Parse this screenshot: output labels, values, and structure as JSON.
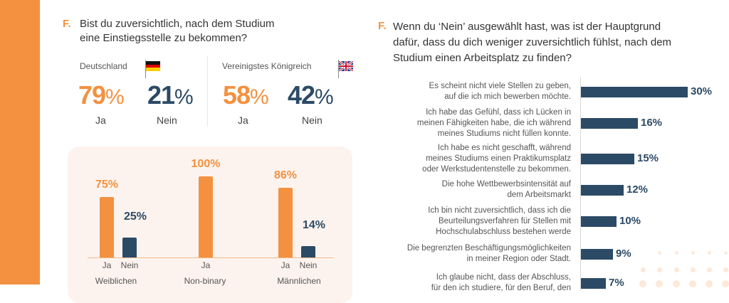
{
  "left": {
    "letter": "F.",
    "question_line1": "Bist du zuversichtlich, nach dem Studium",
    "question_line2": "eine Einstiegsstelle zu bekommen?",
    "countries": [
      {
        "name": "Deutschland",
        "flag": "germany-flag-icon",
        "yes": "79",
        "no": "21",
        "yes_label": "Ja",
        "no_label": "Nein"
      },
      {
        "name": "Vereinigstes Königreich",
        "flag": "uk-flag-icon",
        "yes": "58",
        "no": "42",
        "yes_label": "Ja",
        "no_label": "Nein"
      }
    ],
    "pct_sign": "%"
  },
  "colors": {
    "orange": "#f39140",
    "navy": "#2b4a66",
    "panel": "#fdf3ee"
  },
  "chart_data": [
    {
      "type": "bar",
      "title": "",
      "categories": [
        "Weiblichen",
        "Non-binary",
        "Männlichen"
      ],
      "series": [
        {
          "name": "Ja",
          "values": [
            75,
            100,
            86
          ],
          "labels": [
            "75%",
            "100%",
            "86%"
          ]
        },
        {
          "name": "Nein",
          "values": [
            25,
            null,
            14
          ],
          "labels": [
            "25%",
            null,
            "14%"
          ]
        }
      ],
      "x_sub_labels": [
        "Ja",
        "Nein"
      ],
      "ylim": [
        0,
        100
      ],
      "grid": false
    },
    {
      "type": "bar",
      "orientation": "horizontal",
      "title": "Wenn du ‘Nein’ ausgewählt hast, was ist der Hauptgrund dafür, dass du dich weniger zuversichtlich fühlst, nach dem Studium einen Arbeitsplatz zu finden?",
      "title_letter": "F.",
      "title_lines": [
        "Wenn du ‘Nein’ ausgewählt hast, was ist der Hauptgrund",
        "dafür, dass du dich weniger zuversichtlich fühlst, nach dem",
        "Studium einen Arbeitsplatz zu finden?"
      ],
      "categories": [
        [
          "Es scheint nicht viele Stellen zu geben,",
          "auf die ich mich bewerben möchte."
        ],
        [
          "Ich habe das Gefühl, dass ich Lücken in",
          "meinen Fähigkeiten habe, die ich während",
          "meines Studiums nicht füllen konnte."
        ],
        [
          "Ich habe es nicht geschafft, während",
          "meines Studiums einen Praktikumsplatz",
          "oder Werkstudentenstelle zu bekommen."
        ],
        [
          "Die hohe Wettbewerbsintensität auf",
          "dem Arbeitsmarkt"
        ],
        [
          "Ich bin nicht zuversichtlich, dass ich die",
          "Beurteilungsverfahren für Stellen mit",
          "Hochschulabschluss bestehen werde"
        ],
        [
          "Die begrenzten Beschäftigungsmöglichkeiten",
          "in meiner Region oder Stadt."
        ],
        [
          "Ich glaube nicht, dass der Abschluss,",
          "für den ich studiere, für den Beruf, den"
        ]
      ],
      "values": [
        30,
        16,
        15,
        12,
        10,
        9,
        7
      ],
      "labels": [
        "30%",
        "16%",
        "15%",
        "12%",
        "10%",
        "9%",
        "7%"
      ],
      "xlim": [
        0,
        30
      ],
      "grid": false
    }
  ]
}
